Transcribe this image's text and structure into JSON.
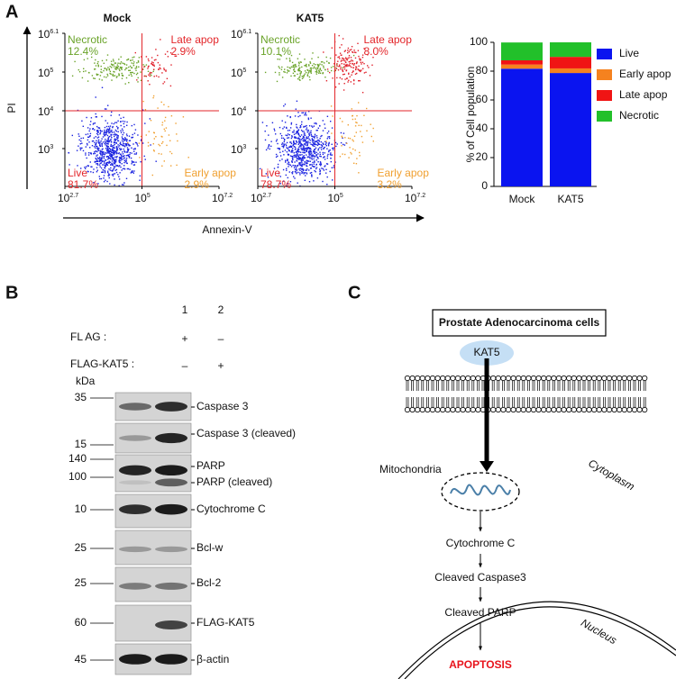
{
  "chart_data": {
    "type": "bar",
    "stacked": true,
    "ylabel": "% of Cell population",
    "categories": [
      "Mock",
      "KAT5"
    ],
    "series": [
      {
        "name": "Live",
        "color": "#0a14f0",
        "values": [
          81.7,
          78.7
        ]
      },
      {
        "name": "Early apop",
        "color": "#f5821f",
        "values": [
          2.9,
          3.2
        ]
      },
      {
        "name": "Late apop",
        "color": "#f01414",
        "values": [
          2.9,
          8.0
        ]
      },
      {
        "name": "Necrotic",
        "color": "#22c02a",
        "values": [
          12.4,
          10.1
        ]
      }
    ],
    "ylim": [
      0,
      100
    ],
    "yticks": [
      0,
      20,
      40,
      60,
      80,
      100
    ],
    "legend": "right"
  },
  "panels": {
    "a": {
      "label": "A",
      "flow": {
        "y_label": "PI",
        "x_label": "Annexin-V",
        "x_ticks": [
          {
            "base": "10",
            "exp": "2.7"
          },
          {
            "base": "10",
            "exp": "5"
          },
          {
            "base": "10",
            "exp": "7.2"
          }
        ],
        "y_ticks": [
          {
            "base": "10",
            "exp": "6.1"
          },
          {
            "base": "10",
            "exp": "5"
          },
          {
            "base": "10",
            "exp": "4"
          },
          {
            "base": "10",
            "exp": "3"
          }
        ],
        "plots": [
          {
            "title": "Mock",
            "quadrants": [
              {
                "name": "Necrotic",
                "value": "12.4%"
              },
              {
                "name": "Late apop",
                "value": "2.9%"
              },
              {
                "name": "Live",
                "value": "81.7%"
              },
              {
                "name": "Early apop",
                "value": "2.9%"
              }
            ]
          },
          {
            "title": "KAT5",
            "quadrants": [
              {
                "name": "Necrotic",
                "value": "10.1%"
              },
              {
                "name": "Late apop",
                "value": "8.0%"
              },
              {
                "name": "Live",
                "value": "78.7%"
              },
              {
                "name": "Early apop",
                "value": "3.2%"
              }
            ]
          }
        ]
      }
    },
    "b": {
      "label": "B",
      "lanes": [
        "1",
        "2"
      ],
      "treatments": [
        {
          "label": "FL AG :",
          "lane_values": [
            "+",
            "–"
          ]
        },
        {
          "label": "FLAG-KAT5 :",
          "lane_values": [
            "–",
            "+"
          ]
        }
      ],
      "kda_label": "kDa",
      "blots": [
        {
          "markers": [
            "35"
          ],
          "labels": [
            "Caspase 3"
          ]
        },
        {
          "markers": [
            "15"
          ],
          "labels": [
            "Caspase 3 (cleaved)"
          ]
        },
        {
          "markers": [
            "140",
            "100"
          ],
          "labels": [
            "PARP",
            "PARP (cleaved)"
          ]
        },
        {
          "markers": [
            "10"
          ],
          "labels": [
            "Cytochrome C"
          ]
        },
        {
          "markers": [
            "25"
          ],
          "labels": [
            "Bcl-w"
          ]
        },
        {
          "markers": [
            "25"
          ],
          "labels": [
            "Bcl-2"
          ]
        },
        {
          "markers": [
            "60"
          ],
          "labels": [
            "FLAG-KAT5"
          ]
        },
        {
          "markers": [
            "45"
          ],
          "labels": [
            "β-actin"
          ]
        }
      ]
    },
    "c": {
      "label": "C",
      "title": "Prostate Adenocarcinoma cells",
      "protein": "KAT5",
      "mitochondria": "Mitochondria",
      "cytoplasm": "Cytoplasm",
      "nucleus": "Nucleus",
      "steps": [
        "Cytochrome C",
        "Cleaved Caspase3",
        "Cleaved PARP"
      ],
      "outcome": "APOPTOSIS"
    }
  }
}
